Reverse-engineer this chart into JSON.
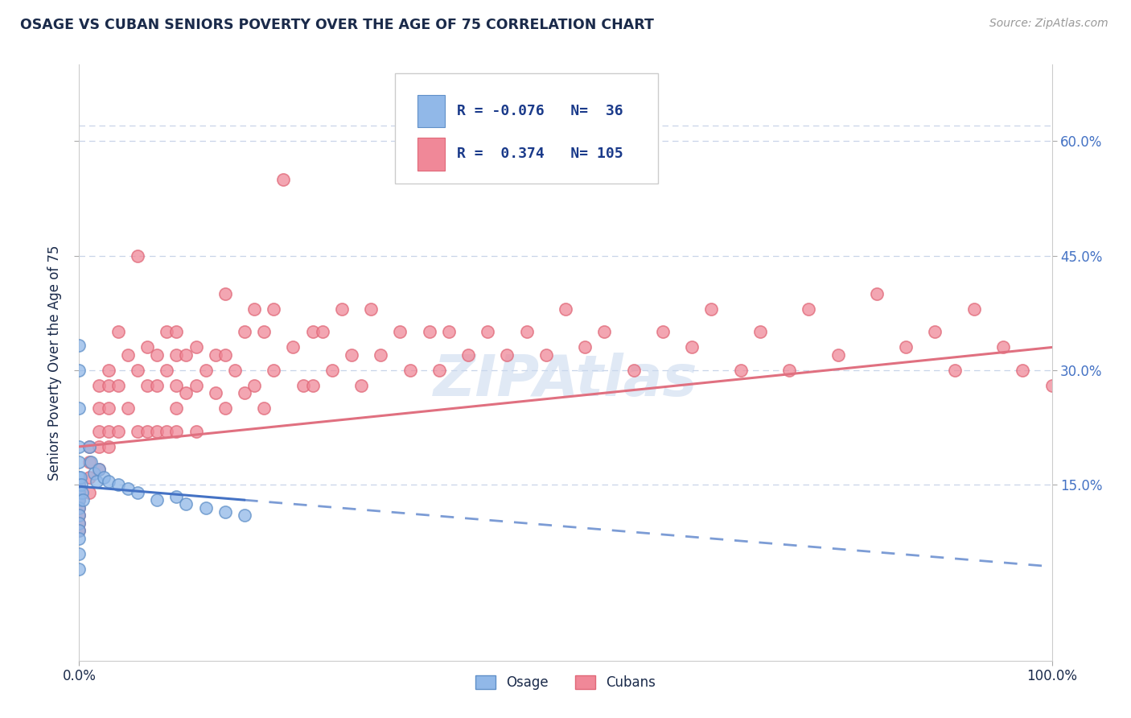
{
  "title": "OSAGE VS CUBAN SENIORS POVERTY OVER THE AGE OF 75 CORRELATION CHART",
  "source": "Source: ZipAtlas.com",
  "ylabel": "Seniors Poverty Over the Age of 75",
  "xlim": [
    0.0,
    1.0
  ],
  "ylim": [
    -0.08,
    0.7
  ],
  "xtick_vals": [
    0.0,
    1.0
  ],
  "xtick_labels": [
    "0.0%",
    "100.0%"
  ],
  "ytick_left_vals": [
    0.15,
    0.3,
    0.45,
    0.6
  ],
  "ytick_left_labels": [
    "",
    "",
    "",
    ""
  ],
  "ytick_right_vals": [
    0.15,
    0.3,
    0.45,
    0.6
  ],
  "ytick_right_labels": [
    "15.0%",
    "30.0%",
    "45.0%",
    "60.0%"
  ],
  "osage_color": "#91b8e8",
  "cubans_color": "#f08898",
  "osage_edge_color": "#6090c8",
  "cubans_edge_color": "#e06878",
  "osage_line_color": "#4472c4",
  "cubans_line_color": "#e07080",
  "r_osage": -0.076,
  "n_osage": 36,
  "r_cubans": 0.374,
  "n_cubans": 105,
  "watermark": "ZIPAtlas",
  "background_color": "#ffffff",
  "grid_color": "#c8d4e8",
  "title_color": "#1a2a4a",
  "axis_label_color": "#1a2a4a",
  "left_tick_color": "#1a2a4a",
  "right_tick_color": "#4472c4",
  "legend_text_color": "#1a3a8a",
  "osage_x": [
    0.0,
    0.0,
    0.0,
    0.0,
    0.0,
    0.0,
    0.0,
    0.0,
    0.0,
    0.0,
    0.0,
    0.0,
    0.0,
    0.0,
    0.0,
    0.0,
    0.001,
    0.002,
    0.003,
    0.004,
    0.01,
    0.012,
    0.015,
    0.018,
    0.02,
    0.025,
    0.03,
    0.04,
    0.05,
    0.06,
    0.08,
    0.1,
    0.11,
    0.13,
    0.15,
    0.17
  ],
  "osage_y": [
    0.333,
    0.3,
    0.25,
    0.2,
    0.18,
    0.16,
    0.15,
    0.14,
    0.13,
    0.12,
    0.11,
    0.1,
    0.09,
    0.08,
    0.06,
    0.04,
    0.16,
    0.15,
    0.14,
    0.13,
    0.2,
    0.18,
    0.165,
    0.155,
    0.17,
    0.16,
    0.155,
    0.15,
    0.145,
    0.14,
    0.13,
    0.135,
    0.125,
    0.12,
    0.115,
    0.11
  ],
  "cubans_x": [
    0.0,
    0.0,
    0.0,
    0.0,
    0.0,
    0.0,
    0.0,
    0.01,
    0.01,
    0.01,
    0.01,
    0.02,
    0.02,
    0.02,
    0.02,
    0.02,
    0.03,
    0.03,
    0.03,
    0.03,
    0.03,
    0.04,
    0.04,
    0.04,
    0.05,
    0.05,
    0.06,
    0.06,
    0.06,
    0.07,
    0.07,
    0.07,
    0.08,
    0.08,
    0.08,
    0.09,
    0.09,
    0.09,
    0.1,
    0.1,
    0.1,
    0.1,
    0.1,
    0.11,
    0.11,
    0.12,
    0.12,
    0.12,
    0.13,
    0.14,
    0.14,
    0.15,
    0.15,
    0.15,
    0.16,
    0.17,
    0.17,
    0.18,
    0.18,
    0.19,
    0.19,
    0.2,
    0.2,
    0.21,
    0.22,
    0.23,
    0.24,
    0.24,
    0.25,
    0.26,
    0.27,
    0.28,
    0.29,
    0.3,
    0.31,
    0.33,
    0.34,
    0.36,
    0.37,
    0.38,
    0.4,
    0.42,
    0.44,
    0.46,
    0.48,
    0.5,
    0.52,
    0.54,
    0.57,
    0.6,
    0.63,
    0.65,
    0.68,
    0.7,
    0.73,
    0.75,
    0.78,
    0.82,
    0.85,
    0.88,
    0.9,
    0.92,
    0.95,
    0.97,
    1.0
  ],
  "cubans_y": [
    0.15,
    0.14,
    0.13,
    0.12,
    0.11,
    0.1,
    0.09,
    0.2,
    0.18,
    0.16,
    0.14,
    0.28,
    0.25,
    0.22,
    0.2,
    0.17,
    0.3,
    0.28,
    0.25,
    0.22,
    0.2,
    0.35,
    0.28,
    0.22,
    0.32,
    0.25,
    0.45,
    0.3,
    0.22,
    0.33,
    0.28,
    0.22,
    0.32,
    0.28,
    0.22,
    0.35,
    0.3,
    0.22,
    0.35,
    0.32,
    0.28,
    0.25,
    0.22,
    0.32,
    0.27,
    0.33,
    0.28,
    0.22,
    0.3,
    0.32,
    0.27,
    0.4,
    0.32,
    0.25,
    0.3,
    0.35,
    0.27,
    0.38,
    0.28,
    0.35,
    0.25,
    0.38,
    0.3,
    0.55,
    0.33,
    0.28,
    0.35,
    0.28,
    0.35,
    0.3,
    0.38,
    0.32,
    0.28,
    0.38,
    0.32,
    0.35,
    0.3,
    0.35,
    0.3,
    0.35,
    0.32,
    0.35,
    0.32,
    0.35,
    0.32,
    0.38,
    0.33,
    0.35,
    0.3,
    0.35,
    0.33,
    0.38,
    0.3,
    0.35,
    0.3,
    0.38,
    0.32,
    0.4,
    0.33,
    0.35,
    0.3,
    0.38,
    0.33,
    0.3,
    0.28
  ]
}
